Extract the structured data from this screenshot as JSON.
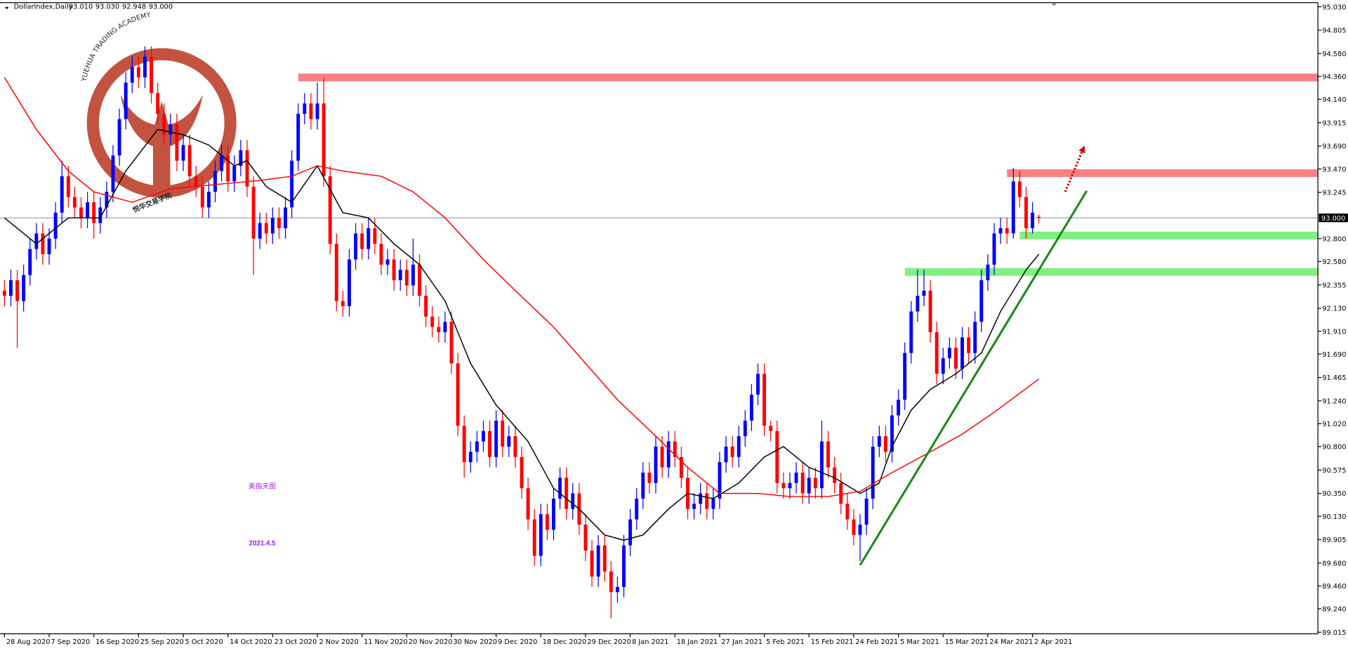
{
  "chart_data": {
    "type": "candlestick",
    "symbol": "DollarIndex,Daily",
    "ohlc_labels": [
      "93.010",
      "93.030",
      "92.948",
      "93.000"
    ],
    "bull_color": "#0000ff",
    "bear_color": "#ff0000",
    "ylim": [
      89.0,
      95.07
    ],
    "xlim": [
      -0.7,
      205.7
    ],
    "yticks": [
      {
        "value": 95.03,
        "label": "95.030"
      },
      {
        "value": 94.805,
        "label": "94.805"
      },
      {
        "value": 94.58,
        "label": "94.580"
      },
      {
        "value": 94.36,
        "label": "94.360"
      },
      {
        "value": 94.14,
        "label": "94.140"
      },
      {
        "value": 93.915,
        "label": "93.915"
      },
      {
        "value": 93.69,
        "label": "93.690"
      },
      {
        "value": 93.47,
        "label": "93.470"
      },
      {
        "value": 93.245,
        "label": "93.245"
      },
      {
        "value": 92.8,
        "label": "92.800"
      },
      {
        "value": 92.58,
        "label": "92.580"
      },
      {
        "value": 92.355,
        "label": "92.355"
      },
      {
        "value": 92.13,
        "label": "92.130"
      },
      {
        "value": 91.91,
        "label": "91.910"
      },
      {
        "value": 91.69,
        "label": "91.690"
      },
      {
        "value": 91.465,
        "label": "91.465"
      },
      {
        "value": 91.24,
        "label": "91.240"
      },
      {
        "value": 91.02,
        "label": "91.020"
      },
      {
        "value": 90.8,
        "label": "90.800"
      },
      {
        "value": 90.575,
        "label": "90.575"
      },
      {
        "value": 90.35,
        "label": "90.350"
      },
      {
        "value": 90.13,
        "label": "90.130"
      },
      {
        "value": 89.905,
        "label": "89.905"
      },
      {
        "value": 89.68,
        "label": "89.680"
      },
      {
        "value": 89.46,
        "label": "89.460"
      },
      {
        "value": 89.24,
        "label": "89.240"
      },
      {
        "value": 89.015,
        "label": "89.015"
      }
    ],
    "current_price": {
      "value": 93.0,
      "label": "93.000"
    },
    "categories": [
      "28 Aug 2020",
      null,
      null,
      null,
      null,
      null,
      null,
      "7 Sep 2020",
      null,
      null,
      null,
      null,
      null,
      null,
      "16 Sep 2020",
      null,
      null,
      null,
      null,
      null,
      null,
      "25 Sep 2020",
      null,
      null,
      null,
      null,
      null,
      null,
      "5 Oct 2020",
      null,
      null,
      null,
      null,
      null,
      null,
      "14 Oct 2020",
      null,
      null,
      null,
      null,
      null,
      null,
      "23 Oct 2020",
      null,
      null,
      null,
      null,
      null,
      null,
      "2 Nov 2020",
      null,
      null,
      null,
      null,
      null,
      null,
      "11 Nov 2020",
      null,
      null,
      null,
      null,
      null,
      null,
      "20 Nov 2020",
      null,
      null,
      null,
      null,
      null,
      null,
      "30 Nov 2020",
      null,
      null,
      null,
      null,
      null,
      null,
      "9 Dec 2020",
      null,
      null,
      null,
      null,
      null,
      null,
      "18 Dec 2020",
      null,
      null,
      null,
      null,
      null,
      null,
      "29 Dec 2020",
      null,
      null,
      null,
      null,
      null,
      null,
      "8 Jan 2021",
      null,
      null,
      null,
      null,
      null,
      null,
      "18 Jan 2021",
      null,
      null,
      null,
      null,
      null,
      null,
      "27 Jan 2021",
      null,
      null,
      null,
      null,
      null,
      null,
      "5 Feb 2021",
      null,
      null,
      null,
      null,
      null,
      null,
      "15 Feb 2021",
      null,
      null,
      null,
      null,
      null,
      null,
      "24 Feb 2021",
      null,
      null,
      null,
      null,
      null,
      null,
      "5 Mar 2021",
      null,
      null,
      null,
      null,
      null,
      null,
      "15 Mar 2021",
      null,
      null,
      null,
      null,
      null,
      null,
      "24 Mar 2021",
      null,
      null,
      null,
      null,
      null,
      null,
      "2 Apr 2021",
      null
    ],
    "open": [
      92.3,
      92.25,
      92.4,
      92.2,
      92.45,
      92.7,
      92.85,
      92.65,
      92.8,
      93.05,
      93.4,
      93.2,
      93.1,
      93.0,
      93.15,
      92.95,
      93.1,
      93.25,
      93.6,
      93.95,
      94.3,
      94.45,
      94.35,
      94.55,
      94.2,
      94.0,
      93.8,
      93.9,
      93.55,
      93.7,
      93.4,
      93.3,
      93.1,
      93.25,
      93.45,
      93.6,
      93.35,
      93.5,
      93.65,
      93.3,
      92.8,
      92.95,
      92.85,
      93.0,
      92.9,
      93.1,
      93.55,
      94.0,
      94.1,
      93.95,
      94.1,
      93.4,
      92.75,
      92.2,
      92.15,
      92.6,
      92.85,
      92.7,
      92.9,
      92.75,
      92.55,
      92.6,
      92.4,
      92.5,
      92.35,
      92.55,
      92.25,
      92.05,
      91.95,
      91.9,
      92.0,
      91.6,
      91.0,
      90.65,
      90.75,
      90.85,
      90.95,
      90.7,
      91.05,
      90.8,
      90.9,
      90.7,
      90.4,
      90.1,
      89.75,
      90.15,
      90.0,
      90.3,
      90.5,
      90.2,
      90.35,
      90.05,
      89.8,
      89.55,
      89.85,
      89.6,
      89.4,
      89.45,
      89.85,
      90.1,
      90.3,
      90.55,
      90.45,
      90.8,
      90.6,
      90.85,
      90.7,
      90.5,
      90.2,
      90.25,
      90.35,
      90.2,
      90.3,
      90.65,
      90.8,
      90.7,
      90.9,
      91.05,
      91.3,
      91.5,
      91.0,
      90.95,
      90.45,
      90.4,
      90.45,
      90.55,
      90.35,
      90.5,
      90.4,
      90.85,
      90.6,
      90.45,
      90.25,
      90.1,
      89.95,
      90.05,
      90.3,
      90.8,
      90.9,
      90.75,
      91.1,
      91.25,
      91.7,
      92.1,
      92.25,
      92.3,
      91.9,
      91.5,
      91.65,
      91.75,
      91.55,
      91.85,
      91.7,
      92.0,
      92.4,
      92.55,
      92.85,
      92.9,
      92.85,
      93.35,
      93.2,
      92.9,
      93.01
    ],
    "high": [
      92.4,
      92.5,
      92.5,
      92.55,
      92.8,
      92.95,
      92.95,
      92.9,
      93.15,
      93.55,
      93.5,
      93.3,
      93.2,
      93.25,
      93.25,
      93.2,
      93.35,
      93.7,
      94.05,
      94.4,
      94.55,
      94.55,
      94.65,
      94.65,
      94.3,
      94.1,
      94.0,
      94.0,
      93.8,
      93.8,
      93.5,
      93.4,
      93.35,
      93.55,
      93.7,
      93.7,
      93.6,
      93.75,
      93.75,
      93.4,
      93.05,
      93.05,
      93.1,
      93.1,
      93.2,
      93.65,
      94.1,
      94.2,
      94.2,
      94.3,
      94.35,
      93.5,
      92.85,
      92.3,
      92.7,
      92.95,
      92.95,
      93.0,
      93.0,
      92.85,
      92.7,
      92.7,
      92.6,
      92.6,
      92.8,
      92.65,
      92.35,
      92.15,
      92.05,
      92.1,
      92.1,
      91.7,
      91.1,
      90.85,
      90.95,
      91.05,
      91.05,
      91.15,
      91.15,
      91.0,
      91.0,
      90.8,
      90.5,
      90.2,
      90.25,
      90.25,
      90.4,
      90.6,
      90.6,
      90.45,
      90.45,
      90.15,
      89.9,
      89.95,
      89.95,
      89.7,
      89.55,
      89.95,
      90.2,
      90.4,
      90.65,
      90.65,
      90.9,
      90.9,
      90.95,
      90.95,
      90.8,
      90.6,
      90.35,
      90.45,
      90.45,
      90.4,
      90.75,
      90.9,
      90.9,
      91.0,
      91.15,
      91.4,
      91.6,
      91.6,
      91.05,
      91.05,
      90.55,
      90.55,
      90.65,
      90.65,
      90.6,
      90.6,
      91.05,
      90.95,
      90.7,
      90.55,
      90.35,
      90.2,
      90.15,
      90.4,
      90.9,
      91.0,
      91.0,
      91.2,
      91.35,
      91.8,
      92.2,
      92.5,
      92.5,
      92.4,
      92.0,
      91.75,
      91.85,
      91.85,
      91.95,
      91.95,
      92.1,
      92.5,
      92.65,
      92.95,
      93.0,
      93.0,
      93.48,
      93.45,
      93.3,
      93.15,
      93.03
    ],
    "low": [
      92.15,
      92.15,
      91.75,
      92.1,
      92.35,
      92.6,
      92.55,
      92.55,
      92.7,
      92.95,
      93.1,
      93.0,
      92.9,
      92.9,
      92.8,
      92.85,
      93.0,
      93.15,
      93.5,
      93.85,
      94.2,
      94.25,
      94.25,
      94.1,
      93.9,
      93.7,
      93.7,
      93.45,
      93.45,
      93.3,
      93.2,
      93.0,
      93.0,
      93.15,
      93.35,
      93.25,
      93.25,
      93.4,
      93.2,
      92.45,
      92.7,
      92.75,
      92.75,
      92.8,
      92.8,
      93.0,
      93.45,
      93.9,
      93.85,
      93.85,
      93.3,
      92.65,
      92.1,
      92.05,
      92.05,
      92.5,
      92.6,
      92.6,
      92.65,
      92.45,
      92.45,
      92.3,
      92.3,
      92.25,
      92.25,
      92.15,
      91.95,
      91.85,
      91.8,
      91.8,
      91.5,
      90.9,
      90.5,
      90.55,
      90.65,
      90.75,
      90.6,
      90.6,
      90.7,
      90.7,
      90.6,
      90.3,
      90.0,
      89.65,
      89.65,
      89.9,
      89.9,
      90.2,
      90.1,
      90.1,
      89.95,
      89.7,
      89.45,
      89.45,
      89.5,
      89.15,
      89.3,
      89.35,
      89.75,
      90.0,
      90.2,
      90.35,
      90.35,
      90.5,
      90.5,
      90.6,
      90.4,
      90.1,
      90.1,
      90.15,
      90.1,
      90.1,
      90.2,
      90.55,
      90.6,
      90.6,
      90.8,
      90.95,
      91.2,
      90.9,
      90.85,
      90.35,
      90.3,
      90.3,
      90.35,
      90.25,
      90.25,
      90.3,
      90.3,
      90.5,
      90.35,
      90.15,
      90.0,
      89.85,
      89.7,
      89.95,
      90.2,
      90.7,
      90.65,
      90.65,
      91.0,
      91.15,
      91.6,
      92.0,
      92.15,
      91.8,
      91.4,
      91.4,
      91.55,
      91.45,
      91.45,
      91.6,
      91.6,
      91.9,
      92.3,
      92.45,
      92.75,
      92.75,
      92.8,
      93.1,
      92.8,
      92.85,
      92.948
    ],
    "close": [
      92.25,
      92.4,
      92.2,
      92.45,
      92.7,
      92.85,
      92.65,
      92.8,
      93.05,
      93.4,
      93.2,
      93.1,
      93.0,
      93.15,
      92.95,
      93.1,
      93.25,
      93.6,
      93.95,
      94.3,
      94.45,
      94.35,
      94.55,
      94.2,
      94.0,
      93.8,
      93.9,
      93.55,
      93.7,
      93.4,
      93.3,
      93.1,
      93.25,
      93.45,
      93.6,
      93.35,
      93.5,
      93.65,
      93.3,
      92.8,
      92.95,
      92.85,
      93.0,
      92.9,
      93.1,
      93.55,
      94.0,
      94.1,
      93.95,
      94.1,
      93.4,
      92.75,
      92.2,
      92.15,
      92.6,
      92.85,
      92.7,
      92.9,
      92.75,
      92.55,
      92.6,
      92.4,
      92.5,
      92.35,
      92.55,
      92.25,
      92.05,
      91.95,
      91.9,
      92.0,
      91.6,
      91.0,
      90.65,
      90.75,
      90.85,
      90.95,
      90.7,
      91.05,
      90.8,
      90.9,
      90.7,
      90.4,
      90.1,
      89.75,
      90.15,
      90.0,
      90.3,
      90.5,
      90.2,
      90.35,
      90.05,
      89.8,
      89.55,
      89.85,
      89.6,
      89.4,
      89.45,
      89.85,
      90.1,
      90.3,
      90.55,
      90.45,
      90.8,
      90.6,
      90.85,
      90.7,
      90.5,
      90.2,
      90.25,
      90.35,
      90.2,
      90.3,
      90.65,
      90.8,
      90.7,
      90.9,
      91.05,
      91.3,
      91.5,
      91.0,
      90.95,
      90.45,
      90.4,
      90.45,
      90.55,
      90.35,
      90.5,
      90.4,
      90.85,
      90.6,
      90.45,
      90.25,
      90.1,
      89.95,
      90.05,
      90.3,
      90.8,
      90.9,
      90.75,
      91.1,
      91.25,
      91.7,
      92.1,
      92.25,
      92.3,
      91.9,
      91.5,
      91.65,
      91.75,
      91.55,
      91.85,
      91.7,
      92.0,
      92.4,
      92.55,
      92.85,
      92.9,
      92.85,
      93.35,
      93.2,
      92.9,
      93.05,
      93.0
    ],
    "lines": [
      {
        "color": "#000000",
        "x": [
          0,
          5,
          10,
          15,
          19,
          24,
          28,
          32,
          36,
          38,
          41,
          45,
          49,
          53,
          57,
          61,
          65,
          69,
          73,
          77,
          82,
          86,
          90,
          94,
          97,
          100,
          104,
          107,
          111,
          115,
          119,
          122,
          126,
          130,
          134,
          137,
          139,
          142,
          145,
          149,
          153,
          156,
          160,
          162
        ],
        "values": [
          93.0,
          92.75,
          93.0,
          93.0,
          93.45,
          93.85,
          93.8,
          93.7,
          93.5,
          93.55,
          93.3,
          93.15,
          93.5,
          93.05,
          93.0,
          92.75,
          92.55,
          92.2,
          91.6,
          91.2,
          90.85,
          90.4,
          90.2,
          89.95,
          89.9,
          89.95,
          90.2,
          90.35,
          90.3,
          90.45,
          90.7,
          90.8,
          90.6,
          90.5,
          90.35,
          90.45,
          90.8,
          91.15,
          91.35,
          91.5,
          91.7,
          92.1,
          92.5,
          92.65
        ]
      },
      {
        "color": "#ff0000",
        "x": [
          0,
          5,
          10,
          14,
          20,
          26,
          33,
          40,
          45,
          49,
          53,
          59,
          64,
          69,
          75,
          80,
          86,
          91,
          96,
          102,
          107,
          112,
          118,
          123,
          129,
          134,
          139,
          145,
          150,
          155,
          162
        ],
        "values": [
          94.35,
          93.85,
          93.45,
          93.25,
          93.15,
          93.28,
          93.32,
          93.36,
          93.4,
          93.5,
          93.45,
          93.4,
          93.25,
          93.0,
          92.6,
          92.3,
          91.95,
          91.6,
          91.25,
          90.9,
          90.6,
          90.35,
          90.35,
          90.32,
          90.32,
          90.37,
          90.55,
          90.75,
          90.92,
          91.13,
          91.45
        ]
      }
    ],
    "levels": [
      {
        "value": 94.35,
        "from": 46,
        "color": "#ff8080"
      },
      {
        "value": 93.43,
        "from": 157,
        "color": "#ff8080"
      },
      {
        "value": 92.83,
        "from": 159,
        "color": "#80f080"
      },
      {
        "value": 92.48,
        "from": 141,
        "color": "#80f080"
      }
    ],
    "trendline": {
      "color": "#1a8a1a",
      "x": [
        134,
        169.5
      ],
      "values": [
        89.66,
        93.26
      ]
    },
    "watermark": {
      "name": "YUEHUA TRADING ACADEMY",
      "chinese": "悦华交易学院"
    },
    "annotations": [
      "美指天图",
      "2021.4.5"
    ]
  }
}
